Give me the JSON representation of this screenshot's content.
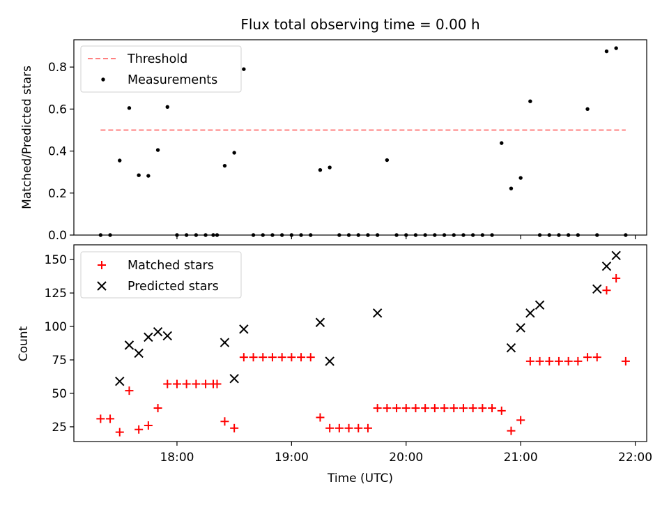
{
  "chart_data": {
    "type": "scatter",
    "title": "Flux total observing time = 0.00 h",
    "xlabel": "Time (UTC)",
    "xlim": [
      "17:06",
      "22:06"
    ],
    "xticks": [
      "18:00",
      "19:00",
      "20:00",
      "21:00",
      "22:00"
    ],
    "panels": [
      {
        "ylabel": "Matched/Predicted stars",
        "ylim": [
          0,
          0.93
        ],
        "yticks": [
          "0.0",
          "0.2",
          "0.4",
          "0.6",
          "0.8"
        ],
        "legend_position": "upper-left",
        "series": [
          {
            "name": "Threshold",
            "style": "dashed-line",
            "color": "#ff8080",
            "x": [
              "17:20",
              "21:55"
            ],
            "y": [
              0.5,
              0.5
            ]
          },
          {
            "name": "Measurements",
            "style": "dot",
            "color": "#000000",
            "x": [
              "17:20",
              "17:25",
              "17:30",
              "17:35",
              "17:40",
              "17:45",
              "17:50",
              "17:55",
              "18:00",
              "18:05",
              "18:10",
              "18:15",
              "18:19",
              "18:21",
              "18:25",
              "18:30",
              "18:35",
              "18:40",
              "18:45",
              "18:50",
              "18:55",
              "19:00",
              "19:05",
              "19:10",
              "19:15",
              "19:20",
              "19:25",
              "19:30",
              "19:35",
              "19:40",
              "19:45",
              "19:50",
              "19:55",
              "20:00",
              "20:05",
              "20:10",
              "20:15",
              "20:20",
              "20:25",
              "20:30",
              "20:35",
              "20:40",
              "20:45",
              "20:50",
              "20:55",
              "21:00",
              "21:05",
              "21:10",
              "21:15",
              "21:20",
              "21:25",
              "21:30",
              "21:35",
              "21:40",
              "21:45",
              "21:50",
              "21:55"
            ],
            "y": [
              0.0,
              0.0,
              0.355,
              0.605,
              0.285,
              0.282,
              0.405,
              0.61,
              0.0,
              0.0,
              0.0,
              0.0,
              0.0,
              0.0,
              0.33,
              0.392,
              0.79,
              0.0,
              0.0,
              0.0,
              0.0,
              0.0,
              0.0,
              0.0,
              0.31,
              0.322,
              0.0,
              0.0,
              0.0,
              0.0,
              0.0,
              0.357,
              0.0,
              0.0,
              0.0,
              0.0,
              0.0,
              0.0,
              0.0,
              0.0,
              0.0,
              0.0,
              0.0,
              0.438,
              0.222,
              0.272,
              0.637,
              0.0,
              0.0,
              0.0,
              0.0,
              0.0,
              0.6,
              0.0,
              0.875,
              0.89,
              0.0
            ]
          }
        ]
      },
      {
        "ylabel": "Count",
        "ylim": [
          14,
          161
        ],
        "yticks": [
          "25",
          "50",
          "75",
          "100",
          "125",
          "150"
        ],
        "legend_position": "upper-left",
        "series": [
          {
            "name": "Matched stars",
            "style": "plus",
            "color": "#ff0000",
            "x": [
              "17:20",
              "17:25",
              "17:30",
              "17:35",
              "17:40",
              "17:45",
              "17:50",
              "17:55",
              "18:00",
              "18:05",
              "18:10",
              "18:15",
              "18:19",
              "18:21",
              "18:25",
              "18:30",
              "18:35",
              "18:40",
              "18:45",
              "18:50",
              "18:55",
              "19:00",
              "19:05",
              "19:10",
              "19:15",
              "19:20",
              "19:25",
              "19:30",
              "19:35",
              "19:40",
              "19:45",
              "19:50",
              "19:55",
              "20:00",
              "20:05",
              "20:10",
              "20:15",
              "20:20",
              "20:25",
              "20:30",
              "20:35",
              "20:40",
              "20:45",
              "20:50",
              "20:55",
              "21:00",
              "21:05",
              "21:10",
              "21:15",
              "21:20",
              "21:25",
              "21:30",
              "21:35",
              "21:40",
              "21:45",
              "21:50",
              "21:55"
            ],
            "y": [
              31,
              31,
              21,
              52,
              23,
              26,
              39,
              57,
              57,
              57,
              57,
              57,
              57,
              57,
              29,
              24,
              77,
              77,
              77,
              77,
              77,
              77,
              77,
              77,
              32,
              24,
              24,
              24,
              24,
              24,
              39,
              39,
              39,
              39,
              39,
              39,
              39,
              39,
              39,
              39,
              39,
              39,
              39,
              37,
              22,
              30,
              74,
              74,
              74,
              74,
              74,
              74,
              77,
              77,
              127,
              136,
              74
            ]
          },
          {
            "name": "Predicted stars",
            "style": "x",
            "color": "#000000",
            "x": [
              "17:30",
              "17:35",
              "17:40",
              "17:45",
              "17:50",
              "17:55",
              "18:25",
              "18:30",
              "18:35",
              "19:15",
              "19:20",
              "19:45",
              "20:55",
              "21:00",
              "21:05",
              "21:10",
              "21:40",
              "21:45",
              "21:50"
            ],
            "y": [
              59,
              86,
              80,
              92,
              96,
              93,
              88,
              61,
              98,
              103,
              74,
              110,
              84,
              99,
              110,
              116,
              128,
              145,
              153
            ]
          }
        ]
      }
    ]
  }
}
